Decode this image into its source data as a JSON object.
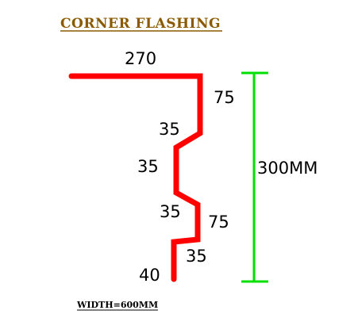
{
  "title": "CORNER FLASHING",
  "segments": [
    "270",
    "75",
    "35",
    "35",
    "35",
    "75",
    "35",
    "40"
  ],
  "overall_height": "300MM",
  "width_note": "WIDTH=600MM",
  "colors": {
    "title": "#8b5a00",
    "profile": "#ff0000",
    "dimension": "#00e000",
    "text": "#000000"
  }
}
